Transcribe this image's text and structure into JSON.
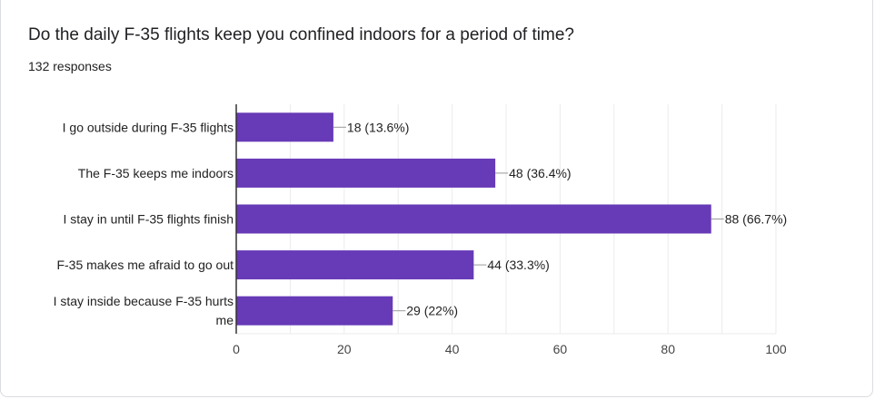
{
  "card": {
    "title": "Do the daily F-35 flights keep you confined indoors for a period of time?",
    "responses": "132 responses"
  },
  "colors": {
    "bar": "#673ab7",
    "grid": "#ebebeb",
    "axis": "#333333",
    "leader": "#999999"
  },
  "chart_data": {
    "type": "bar",
    "orientation": "horizontal",
    "categories": [
      [
        "I go outside during F-35 flights"
      ],
      [
        "The F-35 keeps me indoors"
      ],
      [
        "I stay in until F-35 flights finish"
      ],
      [
        "F-35 makes me afraid to go out"
      ],
      [
        "I stay inside because F-35 hurts",
        "me"
      ]
    ],
    "values": [
      18,
      48,
      88,
      44,
      29
    ],
    "data_labels": [
      "18 (13.6%)",
      "48 (36.4%)",
      "88 (66.7%)",
      "44 (33.3%)",
      "29 (22%)"
    ],
    "xlim": [
      0,
      100
    ],
    "xticks": [
      0,
      20,
      40,
      60,
      80,
      100
    ],
    "grid": true,
    "legend": "none"
  }
}
